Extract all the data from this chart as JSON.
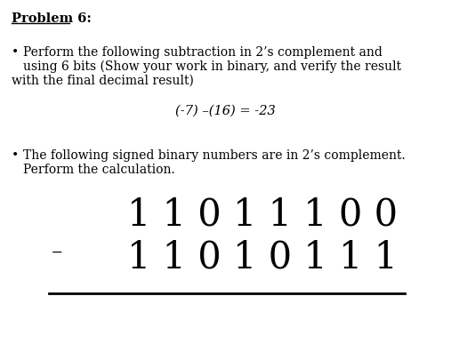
{
  "background_color": "#ffffff",
  "title": "Problem 6:",
  "bullet1_line1": "Perform the following subtraction in 2’s complement and",
  "bullet1_line2": "    using 6 bits (Show your work in binary, and verify the result",
  "bullet1_line3": "with the final decimal result)",
  "equation": "(-7) –(16) = -23",
  "bullet2_line1": "The following signed binary numbers are in 2’s complement.",
  "bullet2_line2": "Perform the calculation.",
  "top_number": "1 1 0 1 1 1 0 0",
  "bottom_number": "1 1 0 1 0 1 1 1",
  "minus_sign": "–",
  "text_color": "#000000",
  "font_family": "DejaVu Serif",
  "title_fontsize": 10.5,
  "body_fontsize": 10.0,
  "eq_fontsize": 10.5,
  "big_fontsize": 30,
  "bullet_char": "•",
  "fig_width": 5.07,
  "fig_height": 3.87,
  "dpi": 100
}
